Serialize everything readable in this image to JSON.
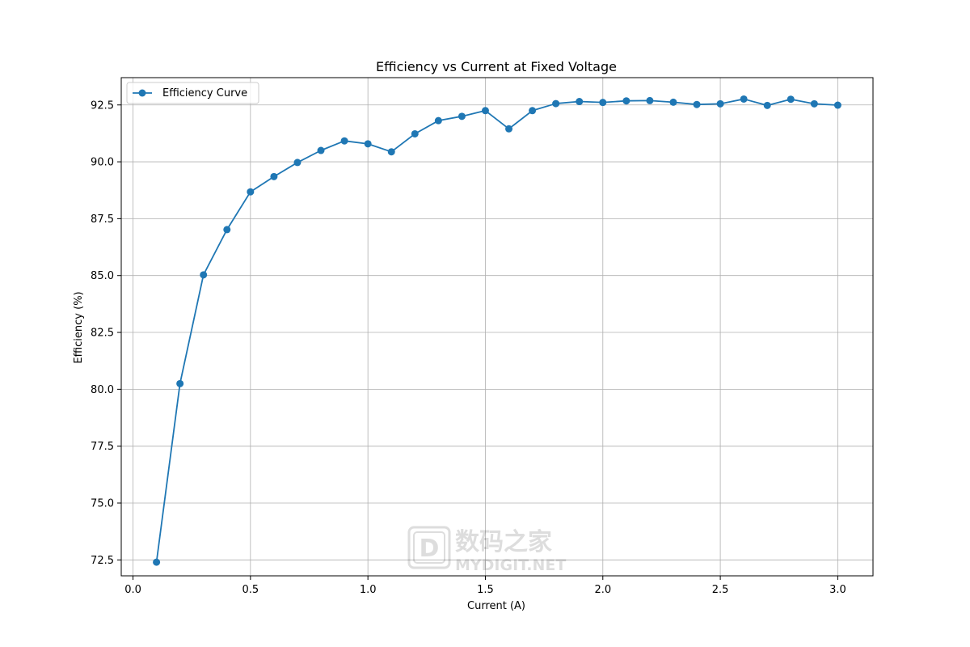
{
  "chart_data": {
    "type": "line",
    "title": "Efficiency vs Current at Fixed Voltage",
    "xlabel": "Current (A)",
    "ylabel": "Efficiency (%)",
    "xlim": [
      -0.05,
      3.15
    ],
    "ylim": [
      71.8,
      93.7
    ],
    "xticks": [
      0.0,
      0.5,
      1.0,
      1.5,
      2.0,
      2.5,
      3.0
    ],
    "xtick_labels": [
      "0.0",
      "0.5",
      "1.0",
      "1.5",
      "2.0",
      "2.5",
      "3.0"
    ],
    "yticks": [
      72.5,
      75.0,
      77.5,
      80.0,
      82.5,
      85.0,
      87.5,
      90.0,
      92.5
    ],
    "ytick_labels": [
      "72.5",
      "75.0",
      "77.5",
      "80.0",
      "82.5",
      "85.0",
      "87.5",
      "90.0",
      "92.5"
    ],
    "grid": true,
    "legend_position": "top-left",
    "series": [
      {
        "name": "Efficiency Curve",
        "color": "#1f77b4",
        "marker": "circle",
        "x": [
          0.1,
          0.2,
          0.3,
          0.4,
          0.5,
          0.6,
          0.7,
          0.8,
          0.9,
          1.0,
          1.1,
          1.2,
          1.3,
          1.4,
          1.5,
          1.6,
          1.7,
          1.8,
          1.9,
          2.0,
          2.1,
          2.2,
          2.3,
          2.4,
          2.5,
          2.6,
          2.7,
          2.8,
          2.9,
          3.0
        ],
        "y": [
          72.4,
          80.25,
          85.03,
          87.02,
          88.68,
          89.35,
          89.97,
          90.5,
          90.92,
          90.79,
          90.44,
          91.23,
          91.81,
          92.0,
          92.25,
          91.45,
          92.25,
          92.56,
          92.65,
          92.61,
          92.68,
          92.69,
          92.62,
          92.52,
          92.55,
          92.76,
          92.48,
          92.75,
          92.55,
          92.49
        ]
      }
    ]
  },
  "watermark": {
    "text_cn": "数码之家",
    "text_en": "MYDIGIT.NET",
    "logo_letter": "D"
  }
}
